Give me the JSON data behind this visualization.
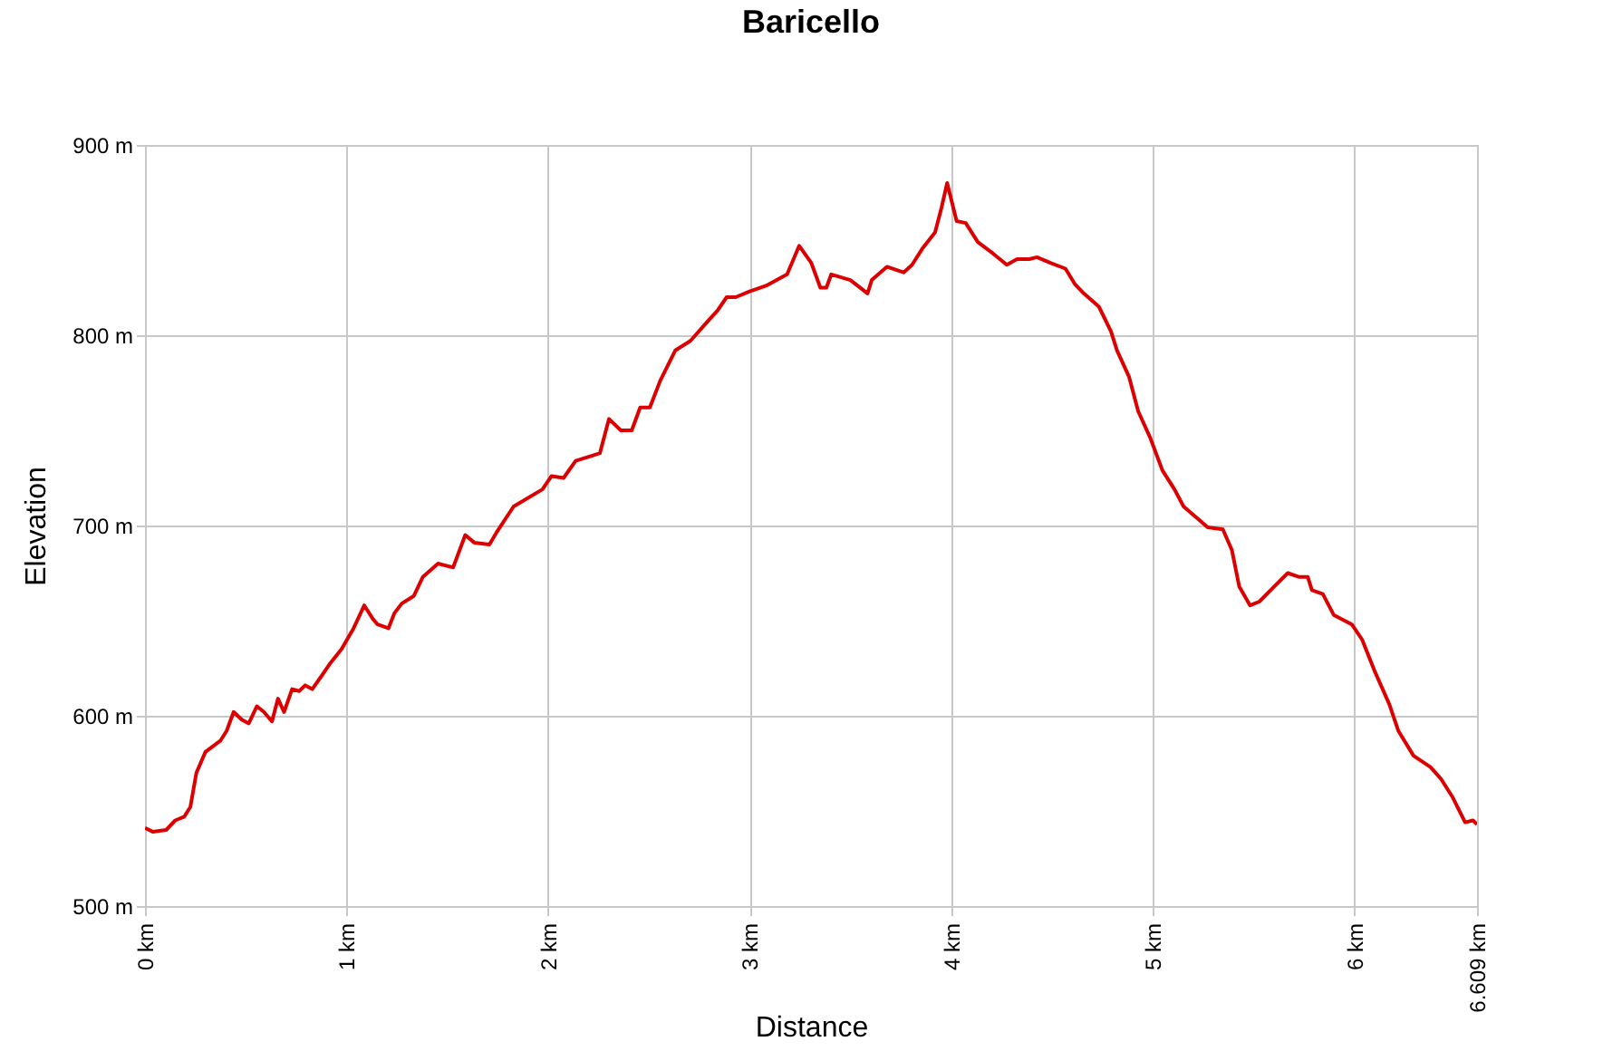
{
  "chart_data": {
    "type": "line",
    "title": "Baricello",
    "xlabel": "Distance",
    "ylabel": "Elevation",
    "xlim": [
      0,
      6.609
    ],
    "ylim": [
      500,
      900
    ],
    "xticks": [
      {
        "value": 0,
        "label": "0 km"
      },
      {
        "value": 1,
        "label": "1 km"
      },
      {
        "value": 2,
        "label": "2 km"
      },
      {
        "value": 3,
        "label": "3 km"
      },
      {
        "value": 4,
        "label": "4 km"
      },
      {
        "value": 5,
        "label": "5 km"
      },
      {
        "value": 6,
        "label": "6 km"
      },
      {
        "value": 6.609,
        "label": "6.609 km"
      }
    ],
    "yticks": [
      {
        "value": 500,
        "label": "500 m"
      },
      {
        "value": 600,
        "label": "600 m"
      },
      {
        "value": 700,
        "label": "700 m"
      },
      {
        "value": 800,
        "label": "800 m"
      },
      {
        "value": 900,
        "label": "900 m"
      }
    ],
    "grid": true,
    "series": [
      {
        "color": "#dd0000",
        "x": [
          0,
          0.04,
          0.105,
          0.15,
          0.195,
          0.225,
          0.255,
          0.3,
          0.375,
          0.405,
          0.44,
          0.48,
          0.515,
          0.555,
          0.59,
          0.63,
          0.66,
          0.69,
          0.73,
          0.765,
          0.795,
          0.83,
          0.87,
          0.915,
          0.975,
          1.035,
          1.088,
          1.13,
          1.154,
          1.208,
          1.238,
          1.274,
          1.334,
          1.379,
          1.454,
          1.49,
          1.529,
          1.589,
          1.634,
          1.709,
          1.748,
          1.829,
          1.972,
          2.017,
          2.077,
          2.137,
          2.227,
          2.257,
          2.302,
          2.361,
          2.415,
          2.457,
          2.505,
          2.556,
          2.631,
          2.706,
          2.781,
          2.841,
          2.886,
          2.931,
          3.0,
          3.081,
          3.186,
          3.246,
          3.306,
          3.351,
          3.381,
          3.405,
          3.5,
          3.585,
          3.606,
          3.681,
          3.764,
          3.806,
          3.86,
          3.92,
          3.952,
          3.98,
          4.027,
          4.072,
          4.132,
          4.207,
          4.276,
          4.327,
          4.387,
          4.426,
          4.492,
          4.567,
          4.613,
          4.658,
          4.733,
          4.793,
          4.823,
          4.883,
          4.928,
          4.988,
          5.048,
          5.108,
          5.153,
          5.273,
          5.348,
          5.393,
          5.429,
          5.483,
          5.529,
          5.604,
          5.67,
          5.724,
          5.769,
          5.79,
          5.844,
          5.898,
          5.988,
          6.039,
          6.099,
          6.174,
          6.219,
          6.294,
          6.378,
          6.429,
          6.489,
          6.55,
          6.589,
          6.609
        ],
        "values": [
          541,
          539,
          540,
          545,
          547,
          552,
          570,
          581,
          587,
          592,
          602,
          598,
          596,
          605,
          602,
          597,
          609,
          602,
          614,
          613,
          616,
          614,
          620,
          627,
          635,
          646,
          658,
          651,
          648,
          646,
          654,
          659,
          663,
          673,
          680,
          679,
          678,
          695,
          691,
          690,
          697,
          710,
          719,
          726,
          725,
          734,
          737,
          738,
          756,
          750,
          750,
          762,
          762,
          776,
          792,
          797,
          806,
          813,
          820,
          820,
          823,
          826,
          832,
          847,
          838,
          825,
          825,
          832,
          829,
          822,
          829,
          836,
          833,
          837,
          846,
          854,
          867,
          880,
          860,
          859,
          849,
          843,
          837,
          840,
          840,
          841,
          838,
          835,
          827,
          822,
          815,
          802,
          792,
          778,
          760,
          746,
          729,
          719,
          710,
          699,
          698,
          687,
          668,
          658,
          660,
          668,
          675,
          673,
          673,
          666,
          664,
          653,
          648,
          640,
          624,
          606,
          592,
          579,
          573,
          567,
          557,
          544,
          545,
          543
        ]
      }
    ]
  }
}
